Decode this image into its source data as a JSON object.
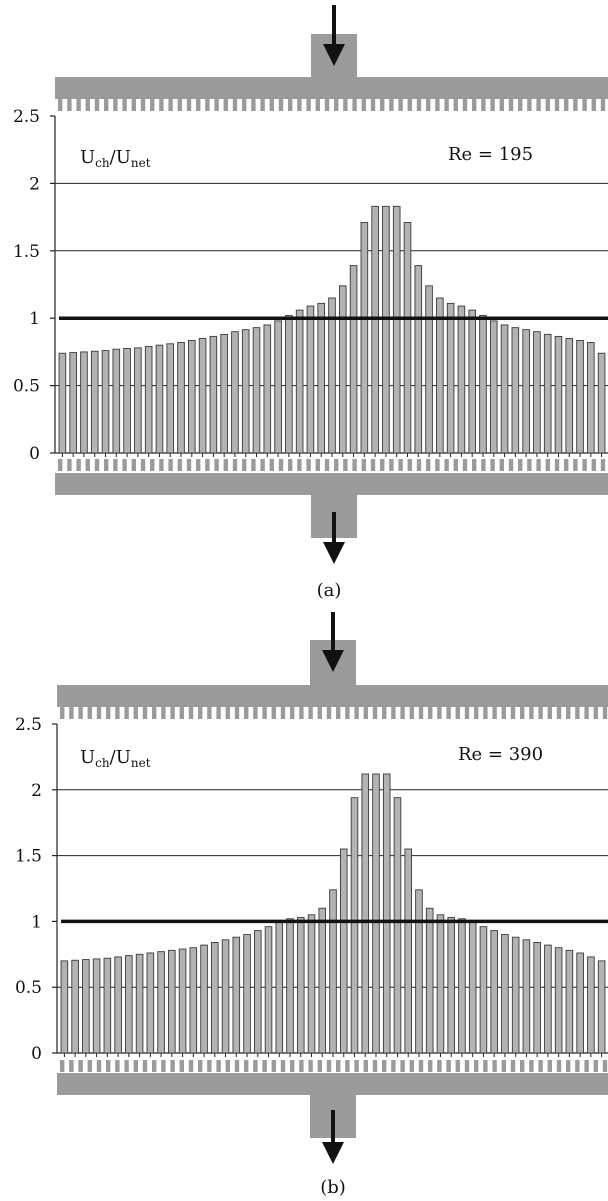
{
  "chart_data": [
    {
      "type": "bar",
      "panel_label": "(a)",
      "y_annotation": {
        "main": "U",
        "sub1": "ch",
        "mid": "/U",
        "sub2": "net"
      },
      "re_label": "Re = 195",
      "ylim": [
        0,
        2.5
      ],
      "yticks": [
        "0",
        "0.5",
        "1",
        "1.5",
        "2",
        "2.5"
      ],
      "grid": true,
      "reference_line": 1,
      "categories_count": 51,
      "values": [
        0.74,
        0.745,
        0.75,
        0.755,
        0.76,
        0.77,
        0.775,
        0.78,
        0.79,
        0.8,
        0.81,
        0.82,
        0.835,
        0.85,
        0.865,
        0.88,
        0.9,
        0.915,
        0.93,
        0.95,
        0.98,
        1.02,
        1.06,
        1.09,
        1.11,
        1.15,
        1.24,
        1.39,
        1.71,
        1.83,
        1.83,
        1.83,
        1.71,
        1.39,
        1.24,
        1.15,
        1.11,
        1.09,
        1.06,
        1.02,
        0.98,
        0.95,
        0.93,
        0.915,
        0.9,
        0.88,
        0.865,
        0.85,
        0.835,
        0.82,
        0.74
      ]
    },
    {
      "type": "bar",
      "panel_label": "(b)",
      "y_annotation": {
        "main": "U",
        "sub1": "ch",
        "mid": "/U",
        "sub2": "net"
      },
      "re_label": "Re = 390",
      "ylim": [
        0,
        2.5
      ],
      "yticks": [
        "0",
        "0.5",
        "1",
        "1.5",
        "2",
        "2.5"
      ],
      "grid": true,
      "reference_line": 1,
      "categories_count": 51,
      "values": [
        0.7,
        0.705,
        0.71,
        0.715,
        0.72,
        0.73,
        0.74,
        0.75,
        0.76,
        0.77,
        0.78,
        0.79,
        0.8,
        0.82,
        0.84,
        0.86,
        0.88,
        0.9,
        0.93,
        0.96,
        1.0,
        1.02,
        1.03,
        1.05,
        1.1,
        1.24,
        1.55,
        1.94,
        2.12,
        2.12,
        2.12,
        1.94,
        1.55,
        1.24,
        1.1,
        1.05,
        1.03,
        1.02,
        1.0,
        0.96,
        0.93,
        0.9,
        0.88,
        0.86,
        0.84,
        0.82,
        0.8,
        0.78,
        0.76,
        0.73,
        0.7
      ]
    }
  ],
  "colors": {
    "bar_fill": "#b3b3b3",
    "bar_stroke": "#3a3a3a",
    "manifold": "#9b9b9b",
    "arrow": "#111111",
    "grid": "#222222",
    "reference_line": "#111111"
  },
  "icons": {
    "inlet": "arrow-down-icon",
    "outlet": "arrow-down-icon"
  }
}
